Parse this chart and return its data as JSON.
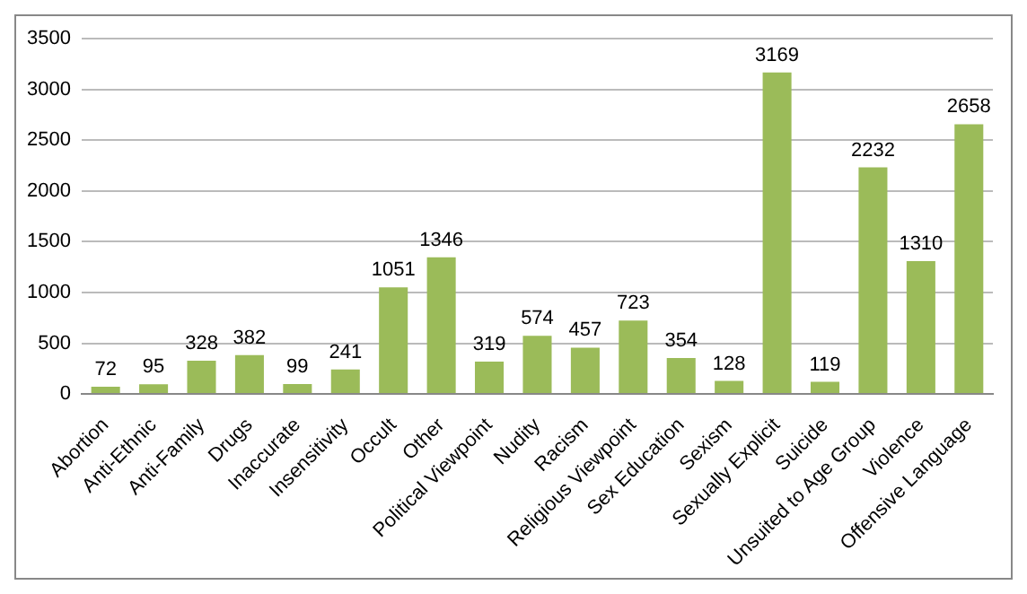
{
  "chart_data": {
    "type": "bar",
    "categories": [
      "Abortion",
      "Anti-Ethnic",
      "Anti-Family",
      "Drugs",
      "Inaccurate",
      "Insensitivity",
      "Occult",
      "Other",
      "Political Viewpoint",
      "Nudity",
      "Racism",
      "Religious Viewpoint",
      "Sex Education",
      "Sexism",
      "Sexually Explicit",
      "Suicide",
      "Unsuited to Age Group",
      "Violence",
      "Offensive Language"
    ],
    "values": [
      72,
      95,
      328,
      382,
      99,
      241,
      1051,
      1346,
      319,
      574,
      457,
      723,
      354,
      128,
      3169,
      119,
      2232,
      1310,
      2658
    ],
    "color": "#9bbb59",
    "ylim": [
      0,
      3500
    ],
    "yticks": [
      0,
      500,
      1000,
      1500,
      2000,
      2500,
      3000,
      3500
    ],
    "grid": "y",
    "data_labels": true
  }
}
